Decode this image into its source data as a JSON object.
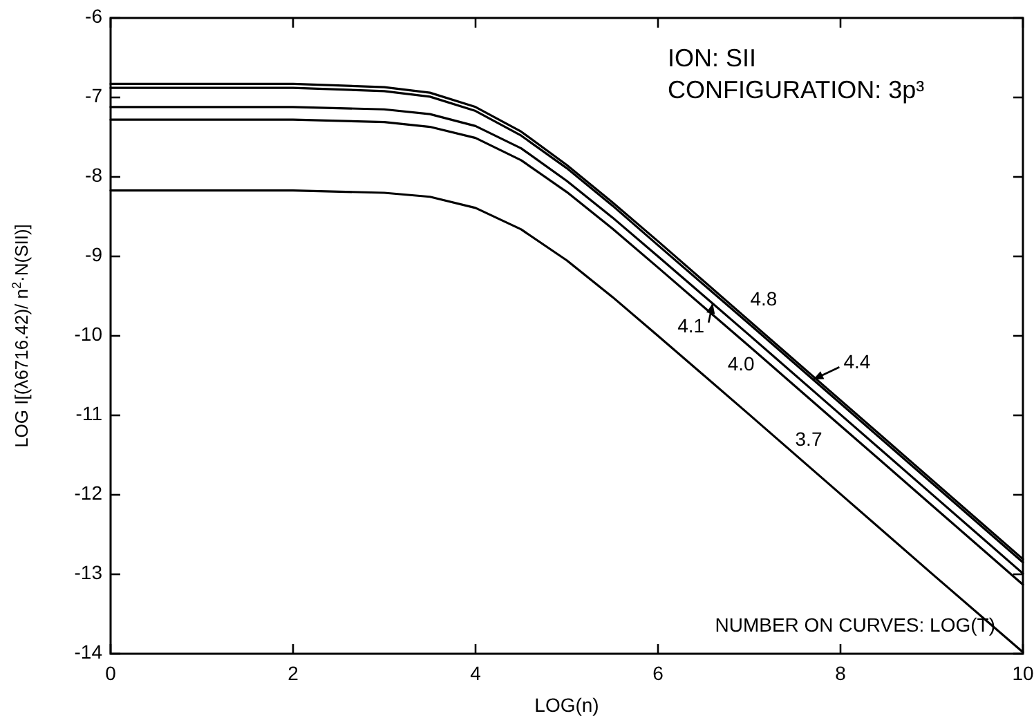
{
  "chart_data": {
    "type": "line",
    "title": "ION: SII",
    "subtitle": "CONFIGURATION: 3p³",
    "xlabel": "LOG(n)",
    "ylabel": "LOG I[(λ6716.42)/ n$^{2}$·N(SII)]",
    "annotations": [
      "NUMBER ON CURVES: LOG(T)",
      {
        "text": "4.8",
        "x": 6.95,
        "y": -9.76
      },
      {
        "text": "4.4",
        "x": 7.7,
        "y": -10.55
      },
      {
        "text": "4.1",
        "x": 6.6,
        "y": -9.59
      },
      {
        "text": "4.0",
        "x": 6.85,
        "y": -9.98
      },
      {
        "text": "3.7",
        "x": 7.5,
        "y": -11.49
      }
    ],
    "x": [
      0,
      1,
      2,
      3,
      3.5,
      4,
      4.5,
      5,
      5.5,
      6,
      7,
      8,
      9,
      10
    ],
    "series": [
      {
        "color": "#000000",
        "values": [
          -6.83,
          -6.83,
          -6.83,
          -6.87,
          -6.94,
          -7.12,
          -7.43,
          -7.85,
          -8.32,
          -8.81,
          -9.81,
          -10.81,
          -11.81,
          -12.81
        ]
      },
      {
        "color": "#000000",
        "values": [
          -6.88,
          -6.88,
          -6.88,
          -6.92,
          -6.99,
          -7.17,
          -7.48,
          -7.89,
          -8.36,
          -8.86,
          -9.85,
          -10.85,
          -11.85,
          -12.85
        ]
      },
      {
        "color": "#000000",
        "values": [
          -7.12,
          -7.12,
          -7.12,
          -7.15,
          -7.21,
          -7.36,
          -7.64,
          -8.05,
          -8.51,
          -9.0,
          -9.99,
          -10.99,
          -11.99,
          -12.99
        ]
      },
      {
        "color": "#000000",
        "values": [
          -7.28,
          -7.28,
          -7.28,
          -7.31,
          -7.37,
          -7.51,
          -7.79,
          -8.19,
          -8.65,
          -9.14,
          -10.13,
          -11.13,
          -12.13,
          -13.13
        ]
      },
      {
        "color": "#000000",
        "values": [
          -8.17,
          -8.17,
          -8.17,
          -8.2,
          -8.25,
          -8.39,
          -8.66,
          -9.05,
          -9.51,
          -10.0,
          -10.99,
          -11.99,
          -12.99,
          -13.98
        ]
      }
    ],
    "xlim": [
      0,
      10
    ],
    "xticks": [
      0,
      2,
      4,
      6,
      8,
      10
    ],
    "ylim": [
      -14,
      -6
    ],
    "yticks": [
      -6,
      -7,
      -8,
      -9,
      -10,
      -11,
      -12,
      -13,
      -14
    ],
    "grid": false,
    "legend": false,
    "marker": "none",
    "line_style": "solid"
  }
}
